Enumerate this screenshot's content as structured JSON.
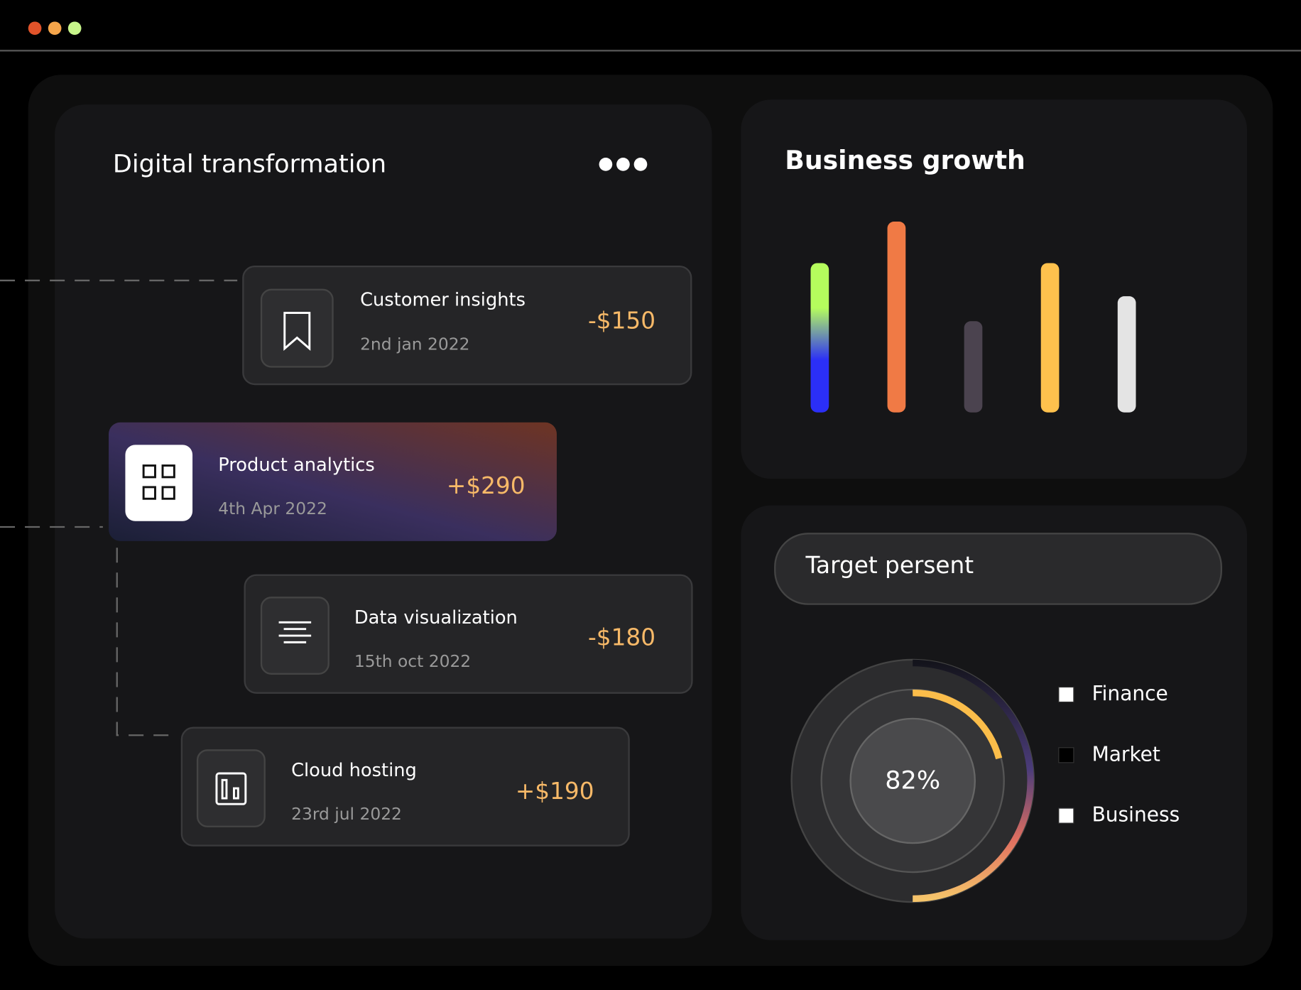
{
  "header": {
    "title": "Digital transformation"
  },
  "items": [
    {
      "title": "Customer insights",
      "date": "2nd jan 2022",
      "amount": "-$150"
    },
    {
      "title": "Product analytics",
      "date": "4th Apr 2022",
      "amount": "+$290"
    },
    {
      "title": "Data visualization",
      "date": "15th oct 2022",
      "amount": "-$180"
    },
    {
      "title": "Cloud hosting",
      "date": "23rd jul 2022",
      "amount": "+$190"
    }
  ],
  "chart_data": {
    "type": "bar",
    "title": "Business growth",
    "values": [
      180,
      230,
      110,
      180,
      140
    ],
    "colors": [
      [
        "#b5fc5d",
        "#2b2ff7"
      ],
      "#f07a45",
      "#4b434f",
      "#fec14d",
      "#e4e4e4"
    ],
    "ylim": [
      0,
      230
    ]
  },
  "target": {
    "title": "Target persent",
    "percent": "82%",
    "legend": [
      {
        "name": "Finance",
        "color": "#ffffff"
      },
      {
        "name": "Market",
        "color": "#000000"
      },
      {
        "name": "Business",
        "color": "#ffffff"
      }
    ]
  }
}
